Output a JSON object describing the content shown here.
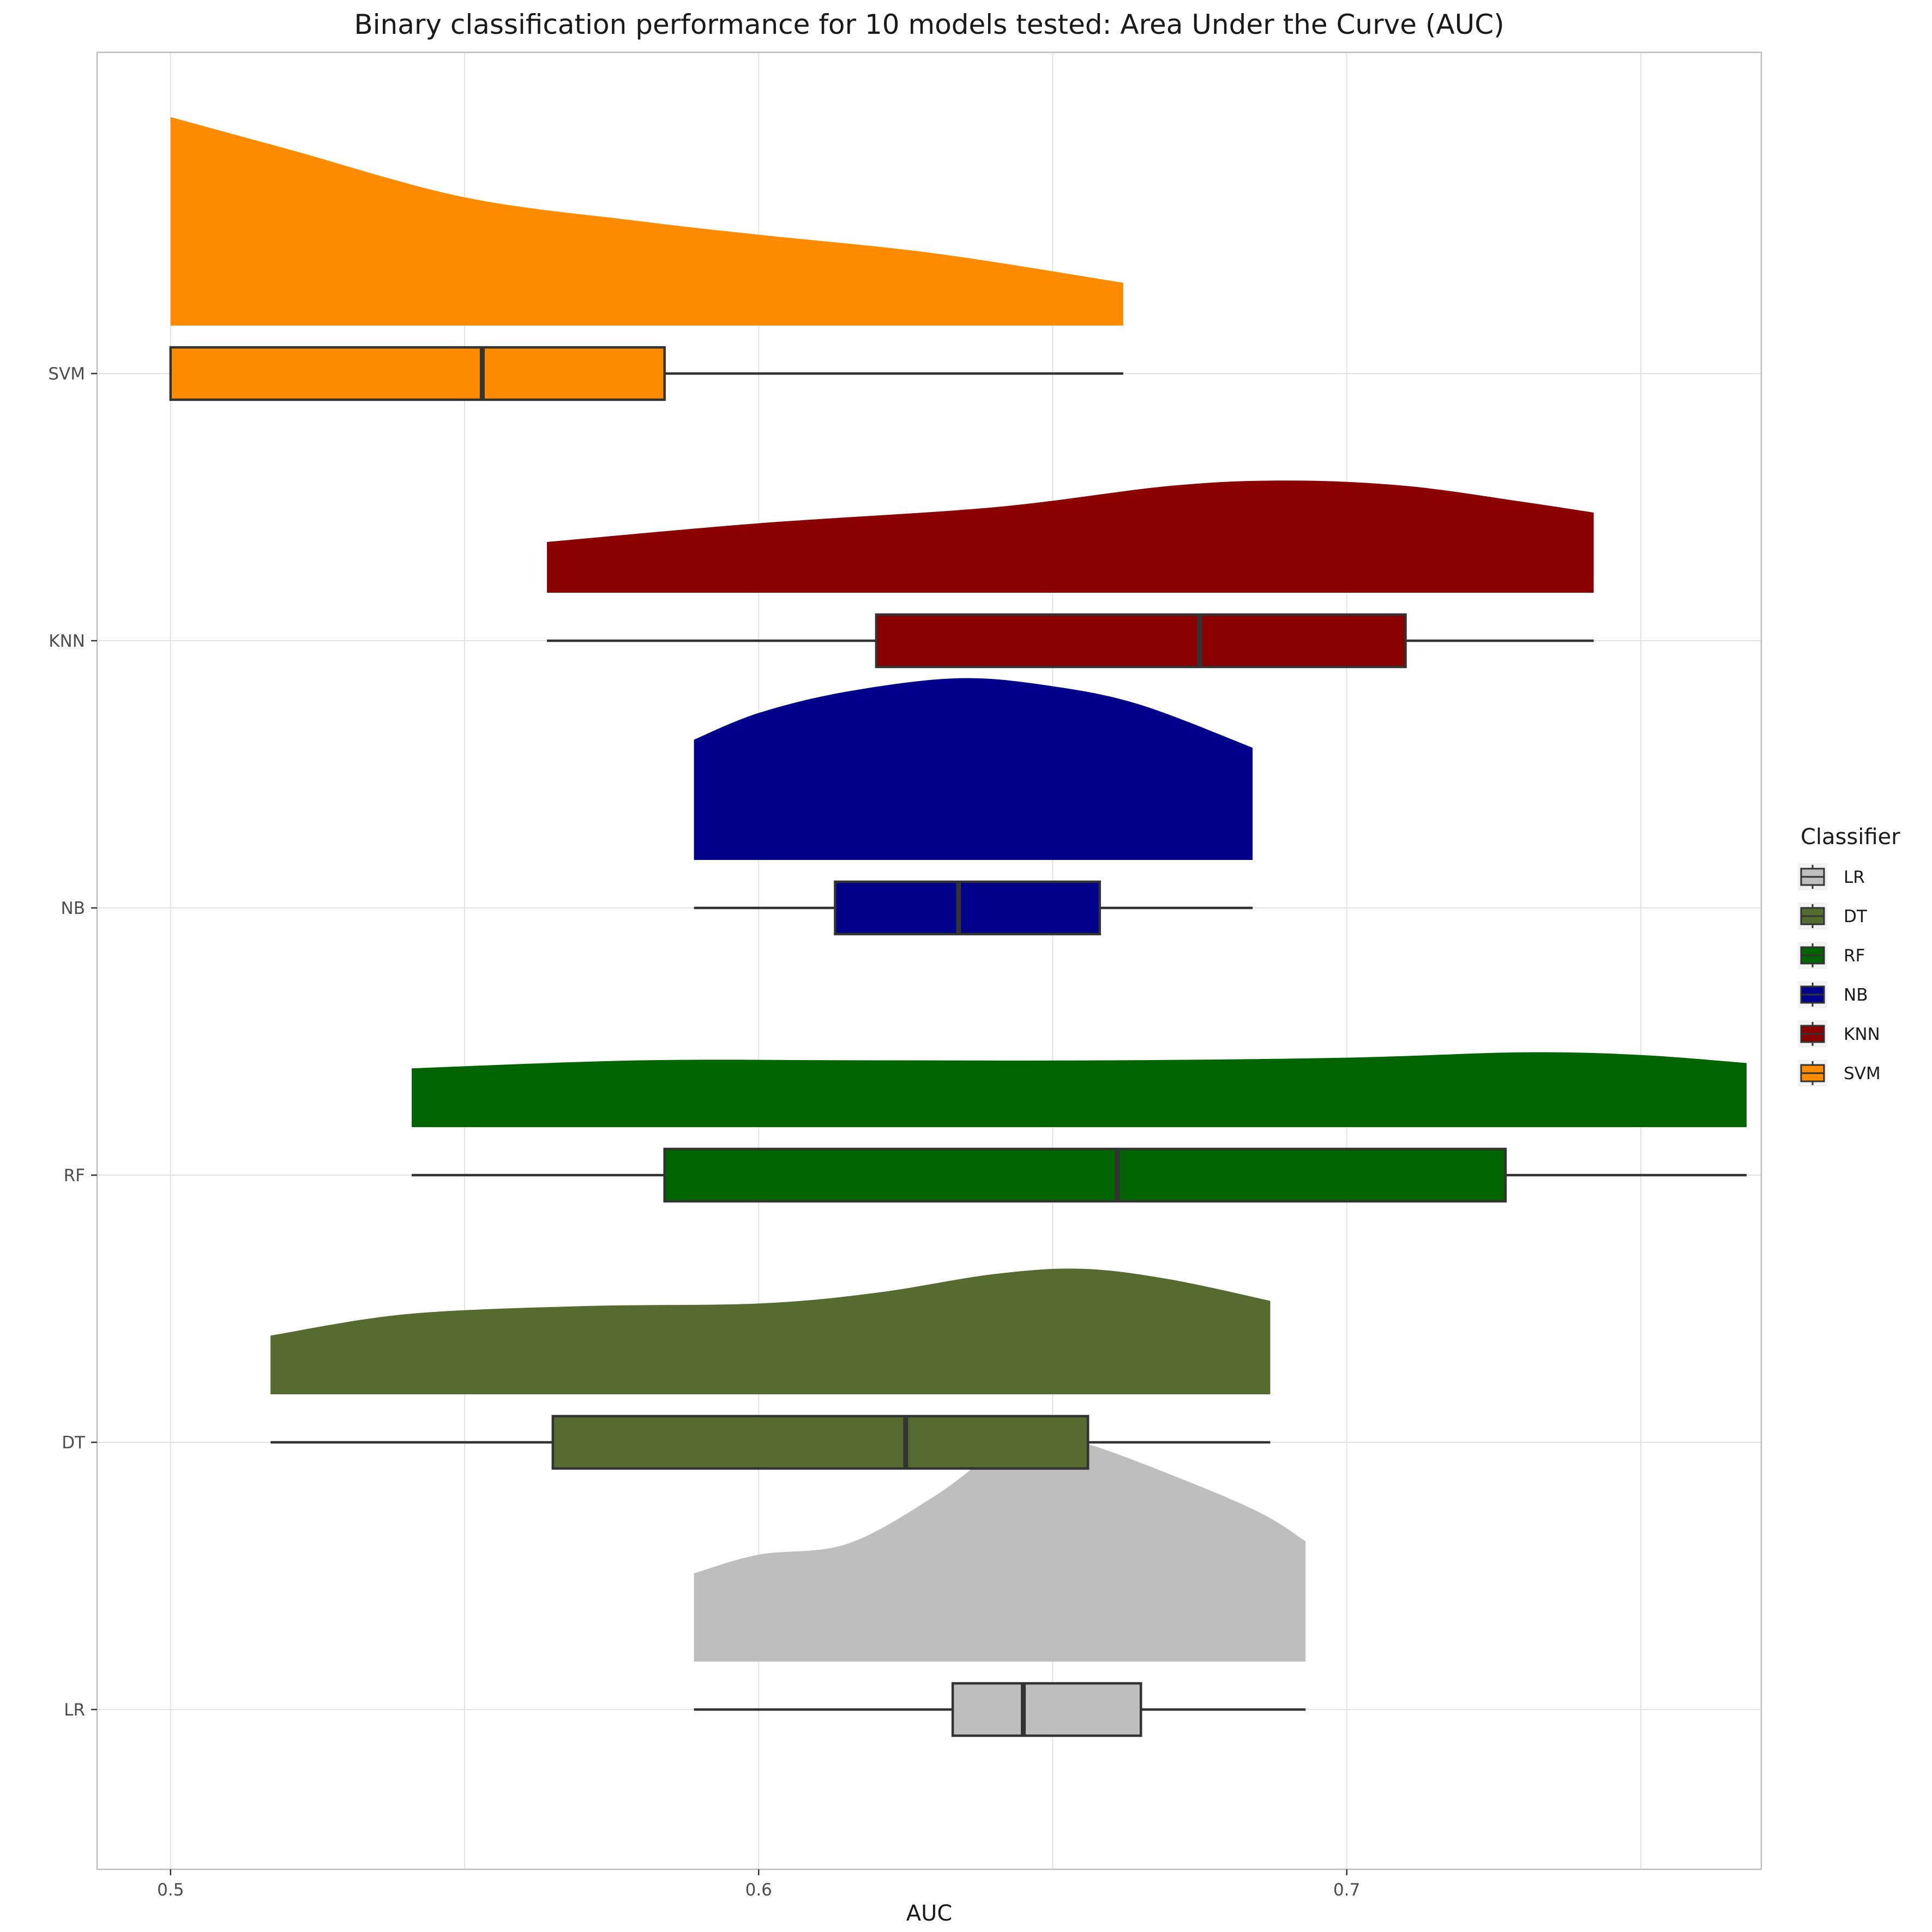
{
  "chart_data": {
    "type": "raincloud",
    "title": "Binary classification performance for 10 models tested: Area Under the Curve (AUC)",
    "xlabel": "AUC",
    "ylabel": "",
    "xlim": [
      0.4875,
      0.7705
    ],
    "x_ticks": [
      0.5,
      0.6,
      0.7
    ],
    "x_tick_labels": [
      "0.5",
      "0.6",
      "0.7"
    ],
    "categories": [
      "LR",
      "DT",
      "RF",
      "NB",
      "KNN",
      "SVM"
    ],
    "grid": true,
    "legend": {
      "title": "Classifier",
      "position": "right",
      "items": [
        "LR",
        "DT",
        "RF",
        "NB",
        "KNN",
        "SVM"
      ]
    },
    "series": [
      {
        "name": "LR",
        "color": "#BEBEBE",
        "box": {
          "min": 0.589,
          "q1": 0.633,
          "median": 0.645,
          "q3": 0.665,
          "max": 0.693
        },
        "density": [
          [
            0.589,
            0.33
          ],
          [
            0.6,
            0.4
          ],
          [
            0.615,
            0.44
          ],
          [
            0.63,
            0.62
          ],
          [
            0.645,
            0.85
          ],
          [
            0.655,
            0.82
          ],
          [
            0.67,
            0.7
          ],
          [
            0.685,
            0.56
          ],
          [
            0.693,
            0.45
          ]
        ]
      },
      {
        "name": "DT",
        "color": "#556B2F",
        "box": {
          "min": 0.517,
          "q1": 0.565,
          "median": 0.625,
          "q3": 0.656,
          "max": 0.687
        },
        "density": [
          [
            0.517,
            0.22
          ],
          [
            0.54,
            0.3
          ],
          [
            0.57,
            0.33
          ],
          [
            0.6,
            0.34
          ],
          [
            0.62,
            0.38
          ],
          [
            0.64,
            0.45
          ],
          [
            0.655,
            0.47
          ],
          [
            0.67,
            0.43
          ],
          [
            0.687,
            0.35
          ]
        ]
      },
      {
        "name": "RF",
        "color": "#006400",
        "box": {
          "min": 0.541,
          "q1": 0.584,
          "median": 0.661,
          "q3": 0.727,
          "max": 0.768
        },
        "density": [
          [
            0.541,
            0.22
          ],
          [
            0.58,
            0.25
          ],
          [
            0.62,
            0.25
          ],
          [
            0.66,
            0.25
          ],
          [
            0.7,
            0.26
          ],
          [
            0.73,
            0.28
          ],
          [
            0.75,
            0.27
          ],
          [
            0.768,
            0.24
          ]
        ]
      },
      {
        "name": "NB",
        "color": "#00008B",
        "box": {
          "min": 0.589,
          "q1": 0.613,
          "median": 0.634,
          "q3": 0.658,
          "max": 0.684
        },
        "density": [
          [
            0.589,
            0.45
          ],
          [
            0.6,
            0.55
          ],
          [
            0.615,
            0.63
          ],
          [
            0.634,
            0.68
          ],
          [
            0.65,
            0.65
          ],
          [
            0.665,
            0.58
          ],
          [
            0.684,
            0.42
          ]
        ]
      },
      {
        "name": "KNN",
        "color": "#8B0000",
        "box": {
          "min": 0.564,
          "q1": 0.62,
          "median": 0.675,
          "q3": 0.71,
          "max": 0.742
        },
        "density": [
          [
            0.564,
            0.19
          ],
          [
            0.6,
            0.26
          ],
          [
            0.64,
            0.32
          ],
          [
            0.67,
            0.4
          ],
          [
            0.69,
            0.42
          ],
          [
            0.71,
            0.4
          ],
          [
            0.73,
            0.34
          ],
          [
            0.742,
            0.3
          ]
        ]
      },
      {
        "name": "SVM",
        "color": "#FF8C00",
        "box": {
          "min": 0.5,
          "q1": 0.5,
          "median": 0.553,
          "q3": 0.584,
          "max": 0.662
        },
        "density": [
          [
            0.5,
            0.78
          ],
          [
            0.52,
            0.66
          ],
          [
            0.55,
            0.48
          ],
          [
            0.58,
            0.39
          ],
          [
            0.6,
            0.34
          ],
          [
            0.63,
            0.27
          ],
          [
            0.662,
            0.16
          ]
        ]
      }
    ]
  }
}
